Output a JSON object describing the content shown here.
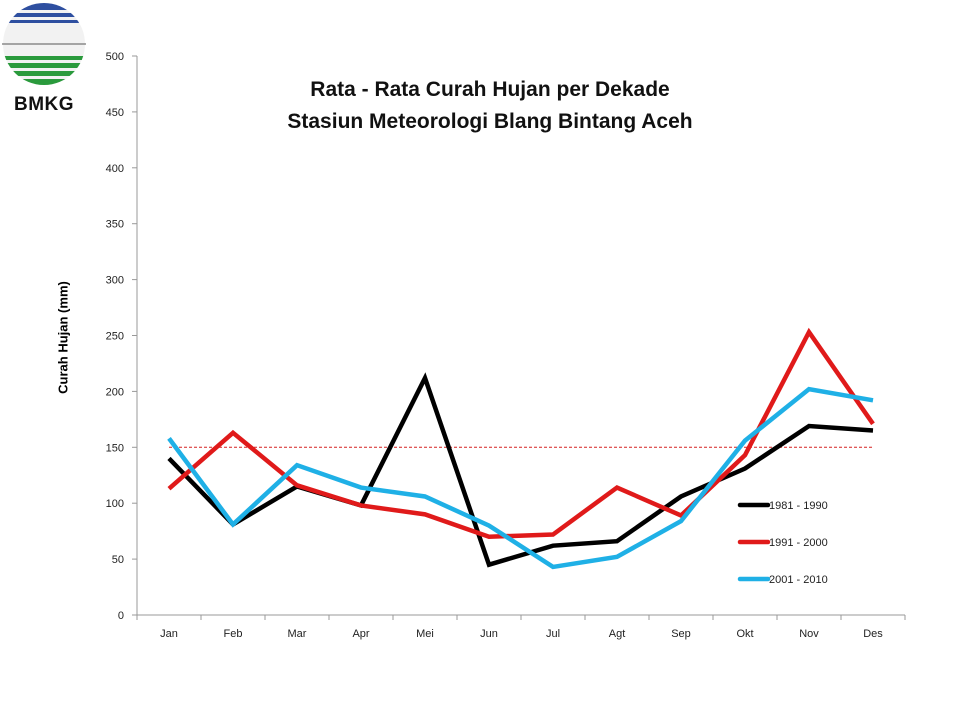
{
  "logo": {
    "text": "BMKG",
    "colors": [
      "#2e4fa0",
      "#2a9a3c"
    ]
  },
  "chart_data": {
    "type": "line",
    "title": "Rata - Rata Curah Hujan per Dekade",
    "subtitle": "Stasiun Meteorologi Blang Bintang Aceh",
    "xlabel": "",
    "ylabel": "Curah Hujan (mm)",
    "ylim": [
      0,
      500
    ],
    "yticks": [
      0,
      50,
      100,
      150,
      200,
      250,
      300,
      350,
      400,
      450,
      500
    ],
    "grid": false,
    "legend": "right",
    "categories": [
      "Jan",
      "Feb",
      "Mar",
      "Apr",
      "Mei",
      "Jun",
      "Jul",
      "Agt",
      "Sep",
      "Okt",
      "Nov",
      "Des"
    ],
    "reference_line": {
      "value": 150,
      "color": "#d62020",
      "style": "dashed"
    },
    "series": [
      {
        "name": "1981 - 1990",
        "color": "#000000",
        "values": [
          140,
          81,
          115,
          98,
          212,
          45,
          62,
          66,
          106,
          131,
          169,
          165
        ]
      },
      {
        "name": "1991 - 2000",
        "color": "#e01a1a",
        "values": [
          113,
          163,
          116,
          98,
          90,
          70,
          72,
          114,
          89,
          143,
          253,
          171
        ]
      },
      {
        "name": "2001 - 2010",
        "color": "#1fb0e6",
        "values": [
          158,
          81,
          134,
          114,
          106,
          80,
          43,
          52,
          84,
          156,
          202,
          192
        ]
      }
    ]
  }
}
